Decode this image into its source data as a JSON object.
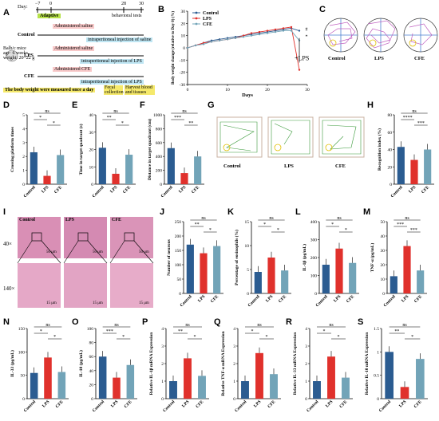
{
  "panel_letters": [
    "A",
    "B",
    "C",
    "D",
    "E",
    "F",
    "G",
    "H",
    "I",
    "J",
    "K",
    "L",
    "M",
    "N",
    "O",
    "P",
    "Q",
    "R",
    "S"
  ],
  "panelA": {
    "day_label": "Day:",
    "day_ticks": [
      "−7",
      "0",
      "28",
      "30"
    ],
    "adaptive": "Adaptive",
    "behavioral": "behavioral tests",
    "mice_info": [
      "Balb/c mice",
      "age: 6 weeks",
      "weight: 20~22 g"
    ],
    "groups": [
      {
        "name": "Control",
        "line1": "Administered saline",
        "line2": "intraperitoneal injection of saline"
      },
      {
        "name": "LPS",
        "line1": "Administered saline",
        "line2": "intraperitoneal injection of LPS"
      },
      {
        "name": "CFE",
        "line1": "Administered CFE",
        "line2": "intraperitoneal injection of LPS"
      }
    ],
    "footer_left": "The body weight were measured once a day",
    "footer_mid": "Fecal collection",
    "footer_right": "Harvest blood and tissues"
  },
  "panelC": {
    "labels": [
      "Control",
      "LPS",
      "CFE"
    ]
  },
  "panelG": {
    "labels": [
      "Control",
      "LPS",
      "CFE"
    ]
  },
  "panelI": {
    "row_labels": [
      "40×",
      "140×"
    ],
    "col_labels": [
      "Control",
      "LPS",
      "CFE"
    ],
    "scale_top": "50 μm",
    "scale_bottom": "15 μm"
  },
  "colors": {
    "control": "#2b5c91",
    "lps": "#e0312c",
    "cfe": "#72a4b8"
  },
  "chart_data": [
    {
      "id": "B",
      "type": "line",
      "title": "",
      "xlabel": "Days",
      "ylabel": "Body weight change (relative to Day 0) (%)",
      "x": [
        0,
        2,
        4,
        6,
        8,
        10,
        12,
        14,
        16,
        18,
        20,
        22,
        24,
        26,
        28
      ],
      "ylim": [
        -30,
        30
      ],
      "xlim": [
        0,
        30
      ],
      "series": [
        {
          "name": "Control",
          "values": [
            0,
            2,
            4,
            6,
            7,
            8,
            9,
            10,
            11,
            12,
            13,
            14,
            15,
            16,
            14
          ]
        },
        {
          "name": "LPS",
          "values": [
            0,
            2,
            4,
            5,
            6,
            7,
            8,
            10,
            12,
            13,
            14,
            15,
            16,
            17,
            -18
          ]
        },
        {
          "name": "CFE",
          "values": [
            0,
            2,
            3,
            5,
            6,
            7,
            8,
            9,
            10,
            11,
            12,
            13,
            14,
            14,
            6
          ]
        }
      ],
      "annotations": [
        "+LPS",
        "#",
        "*"
      ]
    },
    {
      "id": "D",
      "type": "bar",
      "categories": [
        "Control",
        "LPS",
        "CFE"
      ],
      "values": [
        2.3,
        0.6,
        2.1
      ],
      "ylabel": "Crossing platform times",
      "ylim": [
        0,
        5
      ],
      "ticks": [
        0,
        1,
        2,
        3,
        4,
        5
      ],
      "sig": [
        [
          "ns",
          0,
          2
        ],
        [
          "*",
          0,
          1
        ],
        [
          "*",
          1,
          2
        ]
      ]
    },
    {
      "id": "E",
      "type": "bar",
      "categories": [
        "Control",
        "LPS",
        "CFE"
      ],
      "values": [
        21,
        6,
        17
      ],
      "ylabel": "Time in target quadrant (s)",
      "ylim": [
        0,
        40
      ],
      "ticks": [
        0,
        10,
        20,
        30,
        40
      ],
      "sig": [
        [
          "ns",
          0,
          2
        ],
        [
          "**",
          0,
          1
        ],
        [
          "*",
          1,
          2
        ]
      ]
    },
    {
      "id": "F",
      "type": "bar",
      "categories": [
        "Control",
        "LPS",
        "CFE"
      ],
      "values": [
        520,
        160,
        400
      ],
      "ylabel": "Distance in target quadrant (cm)",
      "ylim": [
        0,
        1000
      ],
      "ticks": [
        0,
        200,
        400,
        600,
        800,
        1000
      ],
      "sig": [
        [
          "ns",
          0,
          2
        ],
        [
          "***",
          0,
          1
        ],
        [
          "**",
          1,
          2
        ]
      ]
    },
    {
      "id": "H",
      "type": "bar",
      "categories": [
        "Control",
        "LPS",
        "CFE"
      ],
      "values": [
        43,
        28,
        40
      ],
      "ylabel": "Recognition index (%)",
      "ylim": [
        0,
        80
      ],
      "ticks": [
        0,
        20,
        40,
        60,
        80
      ],
      "sig": [
        [
          "ns",
          0,
          2
        ],
        [
          "****",
          0,
          1
        ],
        [
          "***",
          1,
          2
        ]
      ]
    },
    {
      "id": "J",
      "type": "bar",
      "categories": [
        "Control",
        "LPS",
        "CFE"
      ],
      "values": [
        170,
        140,
        165
      ],
      "ylabel": "Number of neurons",
      "ylim": [
        0,
        250
      ],
      "ticks": [
        0,
        50,
        100,
        150,
        200,
        250
      ],
      "sig": [
        [
          "ns",
          0,
          2
        ],
        [
          "**",
          0,
          1
        ],
        [
          "*",
          1,
          2
        ]
      ]
    },
    {
      "id": "K",
      "type": "bar",
      "categories": [
        "Control",
        "LPS",
        "CFE"
      ],
      "values": [
        4.5,
        7.5,
        4.8
      ],
      "ylabel": "Percentage of eosinophils (%)",
      "ylim": [
        0,
        15
      ],
      "ticks": [
        0,
        5,
        10,
        15
      ],
      "sig": [
        [
          "ns",
          0,
          2
        ],
        [
          "*",
          0,
          1
        ],
        [
          "*",
          1,
          2
        ]
      ]
    },
    {
      "id": "L",
      "type": "bar",
      "categories": [
        "Control",
        "LPS",
        "CFE"
      ],
      "values": [
        160,
        250,
        170
      ],
      "ylabel": "IL-1β (pg/mL)",
      "ylim": [
        0,
        400
      ],
      "ticks": [
        0,
        100,
        200,
        300,
        400
      ],
      "sig": [
        [
          "ns",
          0,
          2
        ],
        [
          "*",
          0,
          1
        ],
        [
          "*",
          1,
          2
        ]
      ]
    },
    {
      "id": "M",
      "type": "bar",
      "categories": [
        "Control",
        "LPS",
        "CFE"
      ],
      "values": [
        12,
        33,
        16
      ],
      "ylabel": "TNF-α (pg/mL)",
      "ylim": [
        0,
        50
      ],
      "ticks": [
        0,
        10,
        20,
        30,
        40,
        50
      ],
      "sig": [
        [
          "ns",
          0,
          2
        ],
        [
          "***",
          0,
          1
        ],
        [
          "***",
          1,
          2
        ]
      ]
    },
    {
      "id": "N",
      "type": "bar",
      "categories": [
        "Control",
        "LPS",
        "CFE"
      ],
      "values": [
        55,
        88,
        57
      ],
      "ylabel": "IL-33 (pg/mL)",
      "ylim": [
        0,
        150
      ],
      "ticks": [
        0,
        50,
        100,
        150
      ],
      "sig": [
        [
          "ns",
          0,
          2
        ],
        [
          "*",
          0,
          1
        ],
        [
          "*",
          1,
          2
        ]
      ]
    },
    {
      "id": "O",
      "type": "bar",
      "categories": [
        "Control",
        "LPS",
        "CFE"
      ],
      "values": [
        60,
        30,
        48
      ],
      "ylabel": "IL-10 (pg/mL)",
      "ylim": [
        0,
        100
      ],
      "ticks": [
        0,
        20,
        40,
        60,
        80,
        100
      ],
      "sig": [
        [
          "ns",
          0,
          2
        ],
        [
          "***",
          0,
          1
        ],
        [
          "*",
          1,
          2
        ]
      ]
    },
    {
      "id": "P",
      "type": "bar",
      "categories": [
        "Control",
        "LPS",
        "CFE"
      ],
      "values": [
        1.0,
        2.3,
        1.3
      ],
      "ylabel": "Relative IL-1β mRNA Expression",
      "ylim": [
        0,
        4
      ],
      "ticks": [
        0,
        1,
        2,
        3,
        4
      ],
      "sig": [
        [
          "ns",
          0,
          2
        ],
        [
          "**",
          0,
          1
        ],
        [
          "*",
          1,
          2
        ]
      ]
    },
    {
      "id": "Q",
      "type": "bar",
      "categories": [
        "Control",
        "LPS",
        "CFE"
      ],
      "values": [
        1.0,
        2.6,
        1.4
      ],
      "ylabel": "Relative TNF-α mRNA Expression",
      "ylim": [
        0,
        4
      ],
      "ticks": [
        0,
        1,
        2,
        3,
        4
      ],
      "sig": [
        [
          "ns",
          0,
          2
        ],
        [
          "*",
          0,
          1
        ],
        [
          "*",
          1,
          2
        ]
      ]
    },
    {
      "id": "R",
      "type": "bar",
      "categories": [
        "Control",
        "LPS",
        "CFE"
      ],
      "values": [
        1.0,
        2.4,
        1.2
      ],
      "ylabel": "Relative IL-33 mRNA Expression",
      "ylim": [
        0,
        4
      ],
      "ticks": [
        0,
        1,
        2,
        3,
        4
      ],
      "sig": [
        [
          "ns",
          0,
          2
        ],
        [
          "*",
          0,
          1
        ],
        [
          "*",
          1,
          2
        ]
      ]
    },
    {
      "id": "S",
      "type": "bar",
      "categories": [
        "Control",
        "LPS",
        "CFE"
      ],
      "values": [
        1.0,
        0.25,
        0.85
      ],
      "ylabel": "Relative IL-10 mRNA Expression",
      "ylim": [
        0,
        1.5
      ],
      "ticks": [
        0,
        0.5,
        1.0,
        1.5
      ],
      "sig": [
        [
          "ns",
          0,
          2
        ],
        [
          "**",
          0,
          1
        ],
        [
          "*",
          1,
          2
        ]
      ]
    }
  ]
}
